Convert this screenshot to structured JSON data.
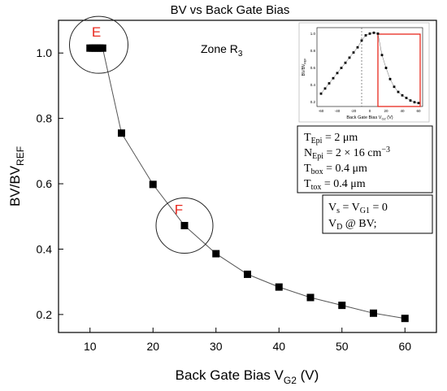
{
  "chart_data": {
    "type": "scatter",
    "title": "BV vs Back Gate Bias",
    "xlabel_main": "Back Gate Bias V",
    "xlabel_sub": "G2",
    "xlabel_unit": " (V)",
    "ylabel_main": "BV/BV",
    "ylabel_sub": "REF",
    "xlim": [
      5,
      65
    ],
    "ylim": [
      0.145,
      1.1
    ],
    "x_ticks": [
      10,
      20,
      30,
      40,
      50,
      60
    ],
    "y_ticks": [
      0.2,
      0.4,
      0.6,
      0.8,
      1.0
    ],
    "x_tick_labels": [
      "10",
      "20",
      "30",
      "40",
      "50",
      "60"
    ],
    "y_tick_labels": [
      "0.2",
      "0.4",
      "0.6",
      "0.8",
      "1.0"
    ],
    "grid": false,
    "series": [
      {
        "x": [
          10,
          10.4,
          10.8,
          11.2,
          11.6,
          12,
          15,
          20,
          25,
          30,
          35,
          40,
          45,
          50,
          55,
          60
        ],
        "y": [
          1.015,
          1.015,
          1.015,
          1.015,
          1.015,
          1.015,
          0.755,
          0.598,
          0.472,
          0.386,
          0.323,
          0.284,
          0.252,
          0.228,
          0.204,
          0.188
        ]
      }
    ],
    "markers": [
      {
        "label": "E",
        "x": 11,
        "y": 1.015,
        "color": "#e8281e"
      },
      {
        "label": "F",
        "x": 25,
        "y": 0.472,
        "color": "#e8281e"
      }
    ],
    "zone_label": "Zone R",
    "zone_sub": "3",
    "params": [
      {
        "main": "T",
        "sub": "Epi",
        "value": " =  2 μm"
      },
      {
        "main": "N",
        "sub": "Epi",
        "value": " =  2 × 16 cm",
        "sup": "−3"
      },
      {
        "main": "T",
        "sub": "box",
        "value": " =  0.4 μm"
      },
      {
        "main": "T",
        "sub": "tox",
        "value": " =  0.4 μm"
      }
    ],
    "bias": [
      {
        "main": "V",
        "sub": "s",
        "value": " = V",
        "sub2": "G1",
        "tail": " = 0"
      },
      {
        "main": "V",
        "sub": "D",
        "value": " @ BV;"
      }
    ],
    "inset": {
      "xlabel": "Back Gate Bias V",
      "xlabel_sub": "G2",
      "xlabel_unit": " (V)",
      "ylabel": "BV/BV",
      "ylabel_sub": "REF",
      "xlim": [
        -65,
        65
      ],
      "ylim": [
        0.15,
        1.07
      ],
      "x_ticks": [
        -60,
        -40,
        -20,
        0,
        20,
        40,
        60
      ],
      "x_tick_labels": [
        "-60",
        "-40",
        "-20",
        "0",
        "20",
        "40",
        "60"
      ],
      "y_ticks": [
        0.2,
        0.4,
        0.6,
        0.8,
        1.0
      ],
      "y_tick_labels": [
        "0.2",
        "0.4",
        "0.6",
        "0.8",
        "1.0"
      ],
      "vline_x": -10,
      "highlight_xrange": [
        10,
        62
      ],
      "highlight_color": "#e8281e",
      "x": [
        -60,
        -55,
        -50,
        -45,
        -40,
        -35,
        -30,
        -25,
        -20,
        -15,
        -10,
        -5,
        0,
        5,
        10,
        15,
        20,
        25,
        30,
        35,
        40,
        45,
        50,
        55,
        60
      ],
      "y": [
        0.3,
        0.36,
        0.42,
        0.48,
        0.54,
        0.6,
        0.66,
        0.72,
        0.78,
        0.84,
        0.92,
        0.98,
        1.0,
        1.01,
        1.0,
        0.75,
        0.6,
        0.47,
        0.38,
        0.32,
        0.28,
        0.25,
        0.22,
        0.2,
        0.19
      ]
    }
  }
}
